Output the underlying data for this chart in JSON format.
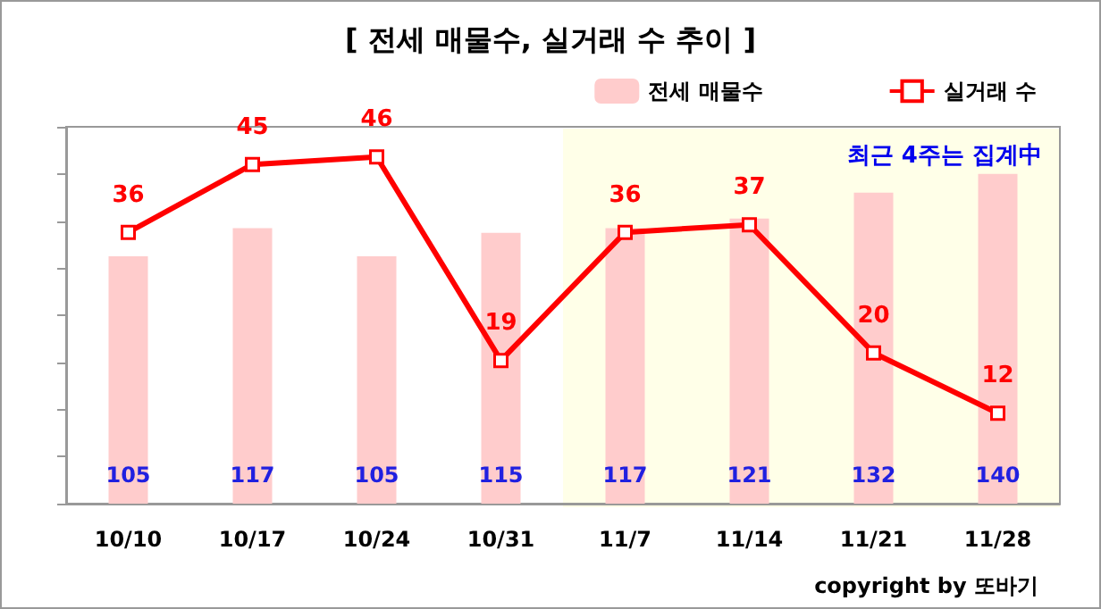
{
  "chart_data": {
    "type": "bar",
    "title": "[ 전세 매물수, 실거래 수 추이 ]",
    "categories": [
      "10/10",
      "10/17",
      "10/24",
      "10/31",
      "11/7",
      "11/14",
      "11/21",
      "11/28"
    ],
    "series": [
      {
        "name": "전세 매물수",
        "color": "#ffcccc",
        "values": [
          105,
          117,
          105,
          115,
          117,
          121,
          132,
          140
        ]
      },
      {
        "name": "실거래 수",
        "type": "line",
        "axis": "y2",
        "color": "#ff0000",
        "marker": "square",
        "values": [
          36,
          45,
          46,
          19,
          36,
          37,
          20,
          12
        ]
      }
    ],
    "ylim": [
      0,
      160
    ],
    "yticks": [
      {
        "value": 0,
        "label": null
      },
      {
        "value": 20,
        "label": null
      },
      {
        "value": 40,
        "label": null
      },
      {
        "value": 60,
        "label": null
      },
      {
        "value": 80,
        "label": null
      },
      {
        "value": 100,
        "label": null
      },
      {
        "value": 120,
        "label": null
      },
      {
        "value": 140,
        "label": null
      },
      {
        "value": 160,
        "label": null
      }
    ],
    "y2lim": [
      0,
      50
    ],
    "tick_labels": "x",
    "data_labels": true,
    "legend": "top right",
    "grid": false,
    "bands": [
      {
        "axis": "x",
        "from": "11/7",
        "to": "11/28",
        "label": "최근 4주는 집계中",
        "color": "#ffffe8"
      }
    ],
    "annotations": [
      "copyright by 또바기"
    ]
  }
}
